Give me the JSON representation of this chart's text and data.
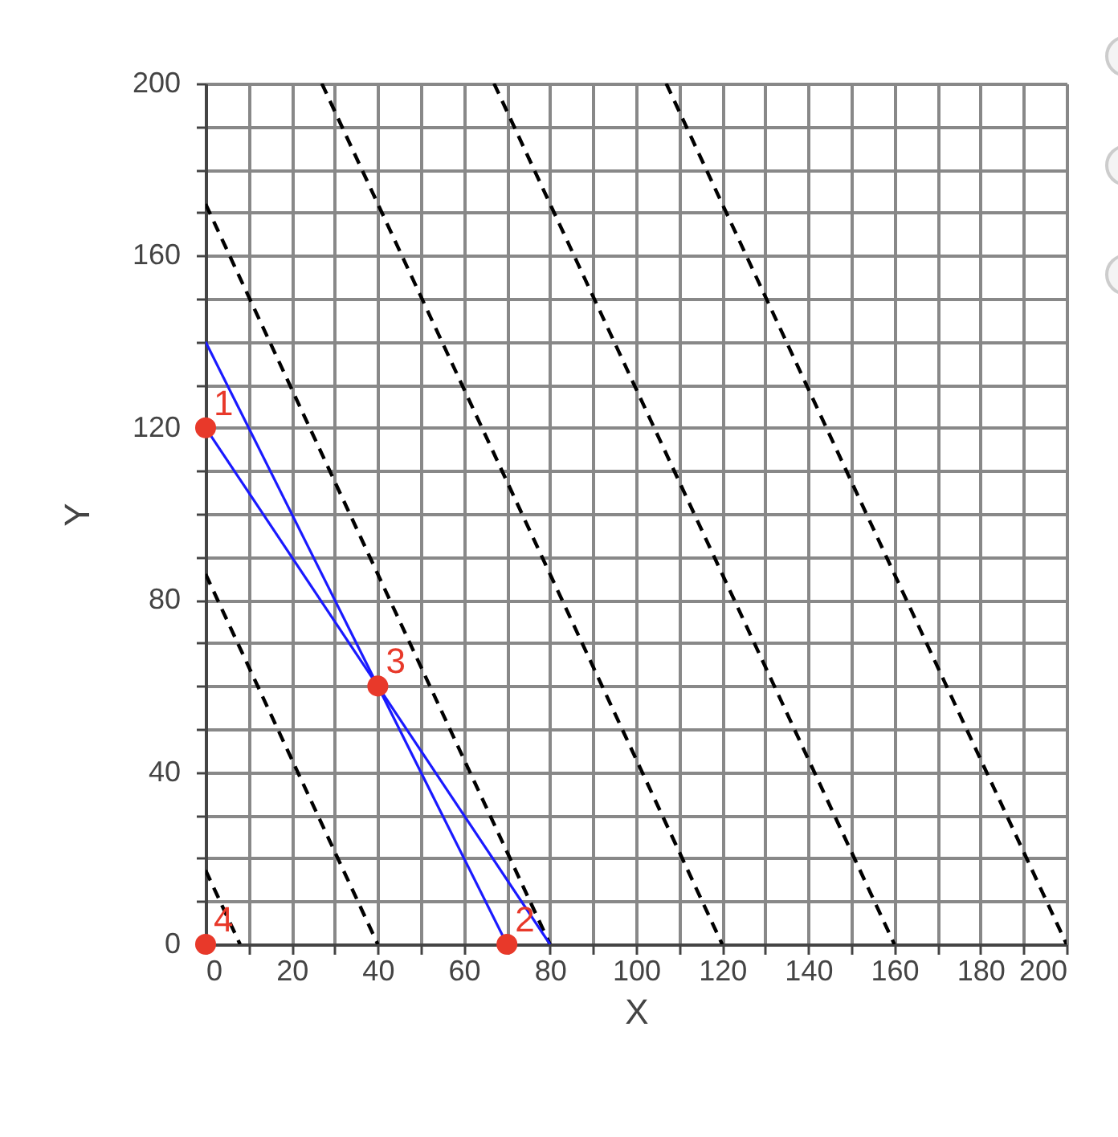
{
  "chart_data": {
    "type": "line",
    "xlabel": "X",
    "ylabel": "Y",
    "xlim": [
      0,
      200
    ],
    "ylim": [
      0,
      200
    ],
    "xticks": [
      0,
      {
        "value": 10,
        "label": null
      },
      20,
      {
        "value": 30,
        "label": null
      },
      40,
      {
        "value": 50,
        "label": null
      },
      60,
      {
        "value": 70,
        "label": null
      },
      80,
      {
        "value": 90,
        "label": null
      },
      100,
      {
        "value": 110,
        "label": null
      },
      120,
      {
        "value": 130,
        "label": null
      },
      140,
      {
        "value": 150,
        "label": null
      },
      160,
      {
        "value": 170,
        "label": null
      },
      180,
      {
        "value": 190,
        "label": null
      },
      200
    ],
    "yticks": [
      0,
      {
        "value": 10,
        "label": null
      },
      {
        "value": 20,
        "label": null
      },
      {
        "value": 30,
        "label": null
      },
      40,
      {
        "value": 50,
        "label": null
      },
      {
        "value": 60,
        "label": null
      },
      {
        "value": 70,
        "label": null
      },
      80,
      {
        "value": 90,
        "label": null
      },
      {
        "value": 100,
        "label": null
      },
      {
        "value": 110,
        "label": null
      },
      120,
      {
        "value": 130,
        "label": null
      },
      {
        "value": 140,
        "label": null
      },
      {
        "value": 150,
        "label": null
      },
      160,
      {
        "value": 170,
        "label": null
      },
      {
        "value": 180,
        "label": null
      },
      {
        "value": 190,
        "label": null
      },
      200
    ],
    "grid": true,
    "series": [
      {
        "type": "line",
        "color": "#000000",
        "line_style": "dashed",
        "x": [
          0,
          8
        ],
        "values": [
          17.2,
          0
        ]
      },
      {
        "type": "line",
        "color": "#000000",
        "line_style": "dashed",
        "x": [
          0,
          40
        ],
        "values": [
          86,
          0
        ]
      },
      {
        "type": "line",
        "color": "#000000",
        "line_style": "dashed",
        "x": [
          0,
          80
        ],
        "values": [
          172,
          0
        ]
      },
      {
        "type": "line",
        "color": "#000000",
        "line_style": "dashed",
        "x": [
          27,
          120
        ],
        "values": [
          200,
          0
        ]
      },
      {
        "type": "line",
        "color": "#000000",
        "line_style": "dashed",
        "x": [
          67,
          160
        ],
        "values": [
          200,
          0
        ]
      },
      {
        "type": "line",
        "color": "#000000",
        "line_style": "dashed",
        "x": [
          107,
          200
        ],
        "values": [
          200,
          0
        ]
      },
      {
        "type": "line",
        "color": "#1a1aff",
        "line_style": "solid",
        "x": [
          0,
          70
        ],
        "values": [
          140,
          0
        ]
      },
      {
        "type": "line",
        "color": "#1a1aff",
        "line_style": "solid",
        "x": [
          0,
          80
        ],
        "values": [
          120,
          0
        ]
      },
      {
        "type": "scatter",
        "color": "#e8392a",
        "marker": "circle",
        "x": [
          0,
          70,
          40,
          0
        ],
        "values": [
          120,
          0,
          60,
          0
        ]
      }
    ],
    "annotations": [
      {
        "text": "1",
        "x": 0,
        "y": 120
      },
      {
        "text": "2",
        "x": 70,
        "y": 0
      },
      {
        "text": "3",
        "x": 40,
        "y": 60
      },
      {
        "text": "4",
        "x": 0,
        "y": 0
      }
    ]
  }
}
